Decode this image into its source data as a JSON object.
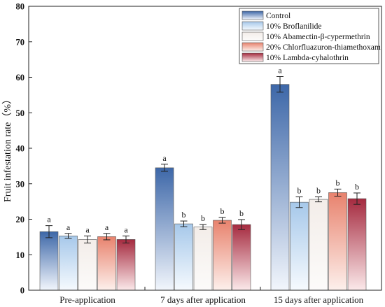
{
  "chart_data": {
    "type": "bar",
    "title": "",
    "xlabel": "",
    "ylabel": "Fruit infestation rate（%）",
    "ylim": [
      0,
      80
    ],
    "yticks": [
      0,
      10,
      20,
      30,
      40,
      50,
      60,
      70,
      80
    ],
    "grid": false,
    "legend_position": "top-right",
    "categories": [
      "Pre-application",
      "7 days after application",
      "15 days after application"
    ],
    "series": [
      {
        "name": "Control",
        "values": [
          16.5,
          34.5,
          58.0
        ],
        "errors": [
          1.7,
          1.0,
          2.2
        ],
        "labels": [
          "a",
          "a",
          "a"
        ],
        "color_top": "#3d67a8",
        "color_bottom": "#f2f6fc"
      },
      {
        "name": "10% Broflanilide",
        "values": [
          15.3,
          18.7,
          24.8
        ],
        "errors": [
          0.7,
          0.8,
          1.5
        ],
        "labels": [
          "a",
          "b",
          "b"
        ],
        "color_top": "#a6c8ea",
        "color_bottom": "#f6fafe"
      },
      {
        "name": "10% Abamectin-β-cypermethrin",
        "values": [
          14.3,
          17.8,
          25.6
        ],
        "errors": [
          1.0,
          0.7,
          0.7
        ],
        "labels": [
          "a",
          "b",
          "b"
        ],
        "color_top": "#f3ede9",
        "color_bottom": "#fcfbfa"
      },
      {
        "name": "20% Chlorfluazuron-thiamethoxam",
        "values": [
          15.1,
          19.7,
          27.5
        ],
        "errors": [
          0.9,
          0.8,
          1.0
        ],
        "labels": [
          "a",
          "b",
          "b"
        ],
        "color_top": "#e8826d",
        "color_bottom": "#fdf0ec"
      },
      {
        "name": "10% Lambda-cyhalothrin",
        "values": [
          14.3,
          18.5,
          25.8
        ],
        "errors": [
          1.0,
          1.4,
          1.6
        ],
        "labels": [
          "a",
          "b",
          "b"
        ],
        "color_top": "#a52a3f",
        "color_bottom": "#fbe9ea"
      }
    ]
  }
}
